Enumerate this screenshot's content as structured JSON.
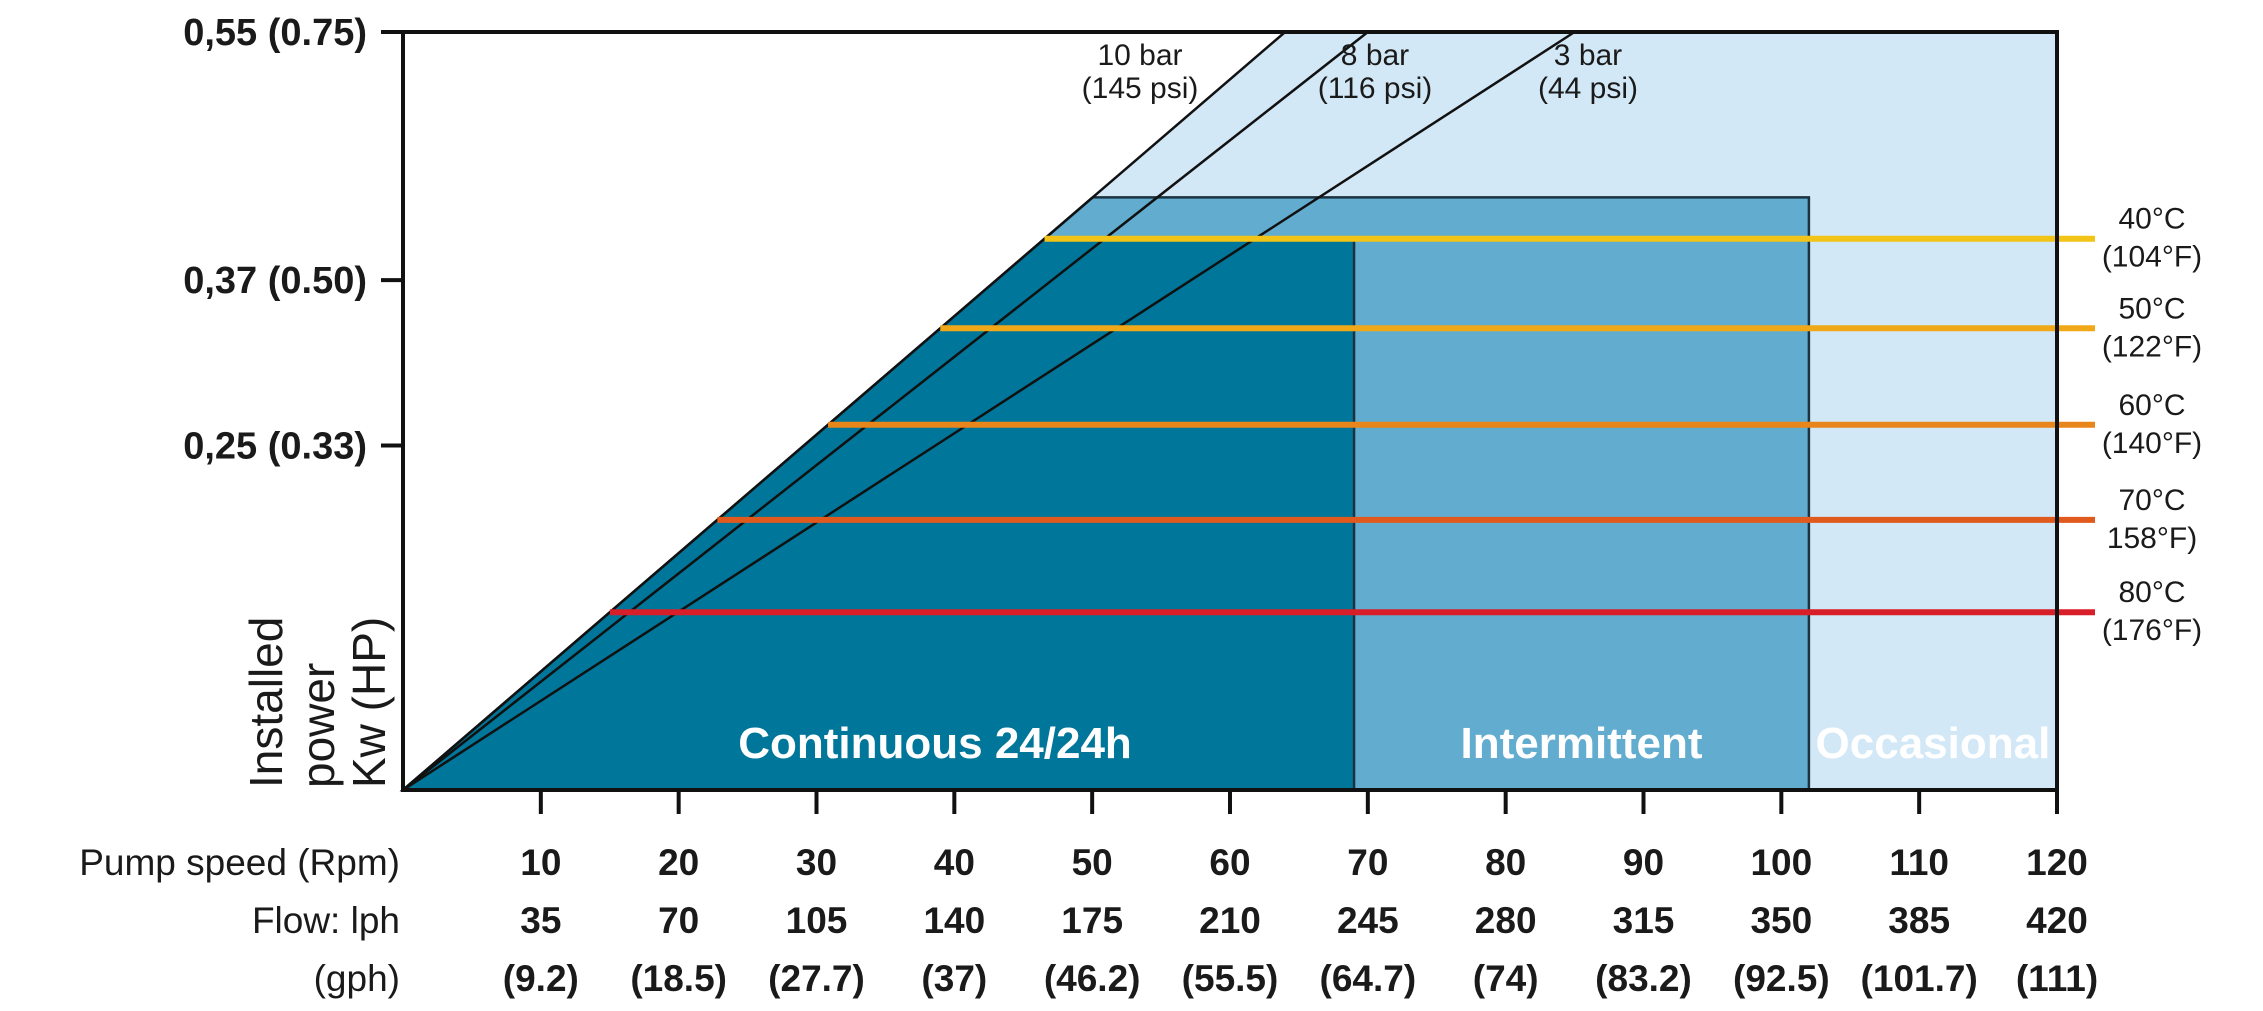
{
  "chart_data": {
    "type": "area",
    "title": "",
    "ylabel": [
      "Installed",
      "power",
      "Kw (HP)"
    ],
    "xlabel_rows": [
      "Pump speed (Rpm)",
      "Flow: lph",
      "(gph)"
    ],
    "xlim": [
      0,
      120
    ],
    "ylim": [
      0,
      0.55
    ],
    "y_ticks": [
      {
        "value": 0.25,
        "label": "0,25 (0.33)"
      },
      {
        "value": 0.37,
        "label": "0,37 (0.50)"
      },
      {
        "value": 0.55,
        "label": "0,55 (0.75)"
      }
    ],
    "x_ticks": [
      {
        "rpm": 10,
        "rpm_label": "10",
        "lph": "35",
        "gph": "(9.2)"
      },
      {
        "rpm": 20,
        "rpm_label": "20",
        "lph": "70",
        "gph": "(18.5)"
      },
      {
        "rpm": 30,
        "rpm_label": "30",
        "lph": "105",
        "gph": "(27.7)"
      },
      {
        "rpm": 40,
        "rpm_label": "40",
        "lph": "140",
        "gph": "(37)"
      },
      {
        "rpm": 50,
        "rpm_label": "50",
        "lph": "175",
        "gph": "(46.2)"
      },
      {
        "rpm": 60,
        "rpm_label": "60",
        "lph": "210",
        "gph": "(55.5)"
      },
      {
        "rpm": 70,
        "rpm_label": "70",
        "lph": "245",
        "gph": "(64.7)"
      },
      {
        "rpm": 80,
        "rpm_label": "80",
        "lph": "280",
        "gph": "(74)"
      },
      {
        "rpm": 90,
        "rpm_label": "90",
        "lph": "315",
        "gph": "(83.2)"
      },
      {
        "rpm": 100,
        "rpm_label": "100",
        "lph": "350",
        "gph": "(92.5)"
      },
      {
        "rpm": 110,
        "rpm_label": "110",
        "lph": "385",
        "gph": "(101.7)"
      },
      {
        "rpm": 120,
        "rpm_label": "120",
        "lph": "420",
        "gph": "(111)"
      }
    ],
    "pressure_lines": [
      {
        "name": "10 bar",
        "sub": "(145 psi)",
        "top_rpm": 64,
        "fill": "#d3e8f6"
      },
      {
        "name": "8 bar",
        "sub": "(116 psi)",
        "top_rpm": 70,
        "fill": "#b5dcf0"
      },
      {
        "name": "3 bar",
        "sub": "(44 psi)",
        "top_rpm": 85,
        "fill": "#acd3e8"
      }
    ],
    "usage_zones": [
      {
        "name": "Continuous 24/24h",
        "rpm_start": 0,
        "rpm_end": 69,
        "top_power": 0.4,
        "color": "#00779a"
      },
      {
        "name": "Intermittent",
        "rpm_start": 69,
        "rpm_end": 102,
        "top_power": 0.43,
        "color": "#62acd0"
      },
      {
        "name": "Occasional",
        "rpm_start": 102,
        "rpm_end": 120,
        "top_power": 0.55,
        "color": "#acd3e8"
      }
    ],
    "intermittent_band_start_rpm": 50,
    "temperature_limits": [
      {
        "celsius": "40°C",
        "fahrenheit": "(104°F)",
        "power": 0.4,
        "color": "#f2c418"
      },
      {
        "celsius": "50°C",
        "fahrenheit": "(122°F)",
        "power": 0.335,
        "color": "#f0a818"
      },
      {
        "celsius": "60°C",
        "fahrenheit": "(140°F)",
        "power": 0.265,
        "color": "#e8861c"
      },
      {
        "celsius": "70°C",
        "fahrenheit": "158°F)",
        "power": 0.196,
        "color": "#e05a1e"
      },
      {
        "celsius": "80°C",
        "fahrenheit": "(176°F)",
        "power": 0.129,
        "color": "#d81e28"
      }
    ],
    "grid": false,
    "legend": "none"
  }
}
